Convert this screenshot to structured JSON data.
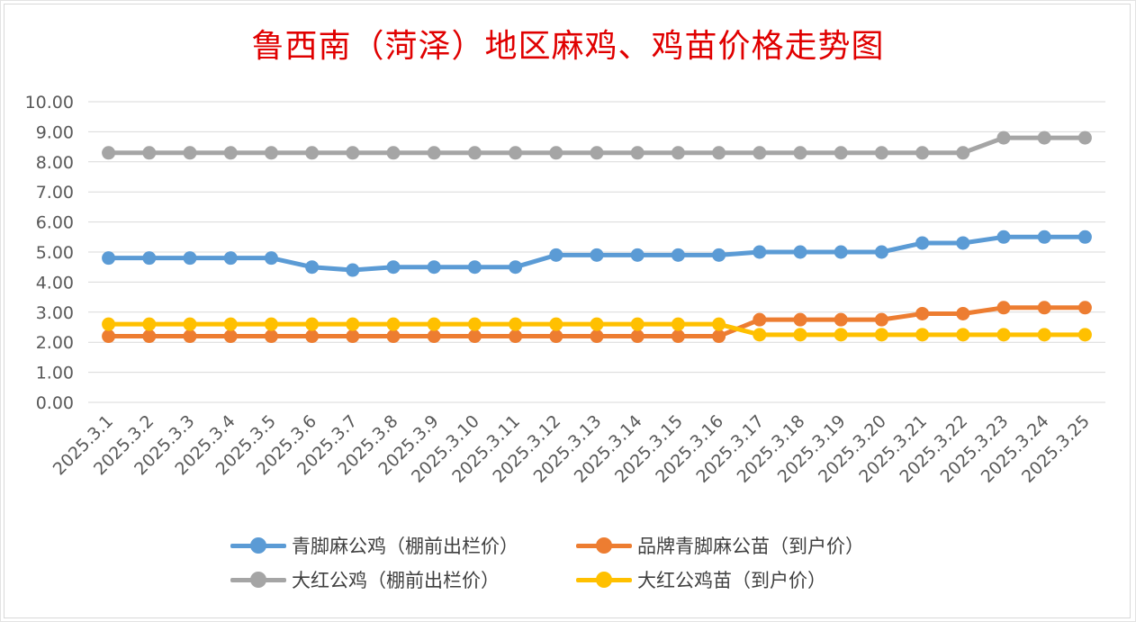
{
  "chart_data": {
    "type": "line",
    "title": "鲁西南（菏泽）地区麻鸡、鸡苗价格走势图",
    "xlabel": "",
    "ylabel": "",
    "ylim": [
      0,
      10
    ],
    "y_ticks": [
      "0.00",
      "1.00",
      "2.00",
      "3.00",
      "4.00",
      "5.00",
      "6.00",
      "7.00",
      "8.00",
      "9.00",
      "10.00"
    ],
    "grid": true,
    "legend_position": "bottom",
    "categories": [
      "2025.3.1",
      "2025.3.2",
      "2025.3.3",
      "2025.3.4",
      "2025.3.5",
      "2025.3.6",
      "2025.3.7",
      "2025.3.8",
      "2025.3.9",
      "2025.3.10",
      "2025.3.11",
      "2025.3.12",
      "2025.3.13",
      "2025.3.14",
      "2025.3.15",
      "2025.3.16",
      "2025.3.17",
      "2025.3.18",
      "2025.3.19",
      "2025.3.20",
      "2025.3.21",
      "2025.3.22",
      "2025.3.23",
      "2025.3.24",
      "2025.3.25"
    ],
    "series": [
      {
        "name": "青脚麻公鸡（棚前出栏价）",
        "color": "#5b9bd5",
        "values": [
          4.8,
          4.8,
          4.8,
          4.8,
          4.8,
          4.5,
          4.4,
          4.5,
          4.5,
          4.5,
          4.5,
          4.9,
          4.9,
          4.9,
          4.9,
          4.9,
          5.0,
          5.0,
          5.0,
          5.0,
          5.3,
          5.3,
          5.5,
          5.5,
          5.5
        ]
      },
      {
        "name": "品牌青脚麻公苗（到户价）",
        "color": "#ed7d31",
        "values": [
          2.2,
          2.2,
          2.2,
          2.2,
          2.2,
          2.2,
          2.2,
          2.2,
          2.2,
          2.2,
          2.2,
          2.2,
          2.2,
          2.2,
          2.2,
          2.2,
          2.75,
          2.75,
          2.75,
          2.75,
          2.95,
          2.95,
          3.15,
          3.15,
          3.15
        ]
      },
      {
        "name": "大红公鸡（棚前出栏价）",
        "color": "#a5a5a5",
        "values": [
          8.3,
          8.3,
          8.3,
          8.3,
          8.3,
          8.3,
          8.3,
          8.3,
          8.3,
          8.3,
          8.3,
          8.3,
          8.3,
          8.3,
          8.3,
          8.3,
          8.3,
          8.3,
          8.3,
          8.3,
          8.3,
          8.3,
          8.8,
          8.8,
          8.8
        ]
      },
      {
        "name": "大红公鸡苗（到户价）",
        "color": "#ffc000",
        "values": [
          2.6,
          2.6,
          2.6,
          2.6,
          2.6,
          2.6,
          2.6,
          2.6,
          2.6,
          2.6,
          2.6,
          2.6,
          2.6,
          2.6,
          2.6,
          2.6,
          2.25,
          2.25,
          2.25,
          2.25,
          2.25,
          2.25,
          2.25,
          2.25,
          2.25
        ]
      }
    ]
  }
}
